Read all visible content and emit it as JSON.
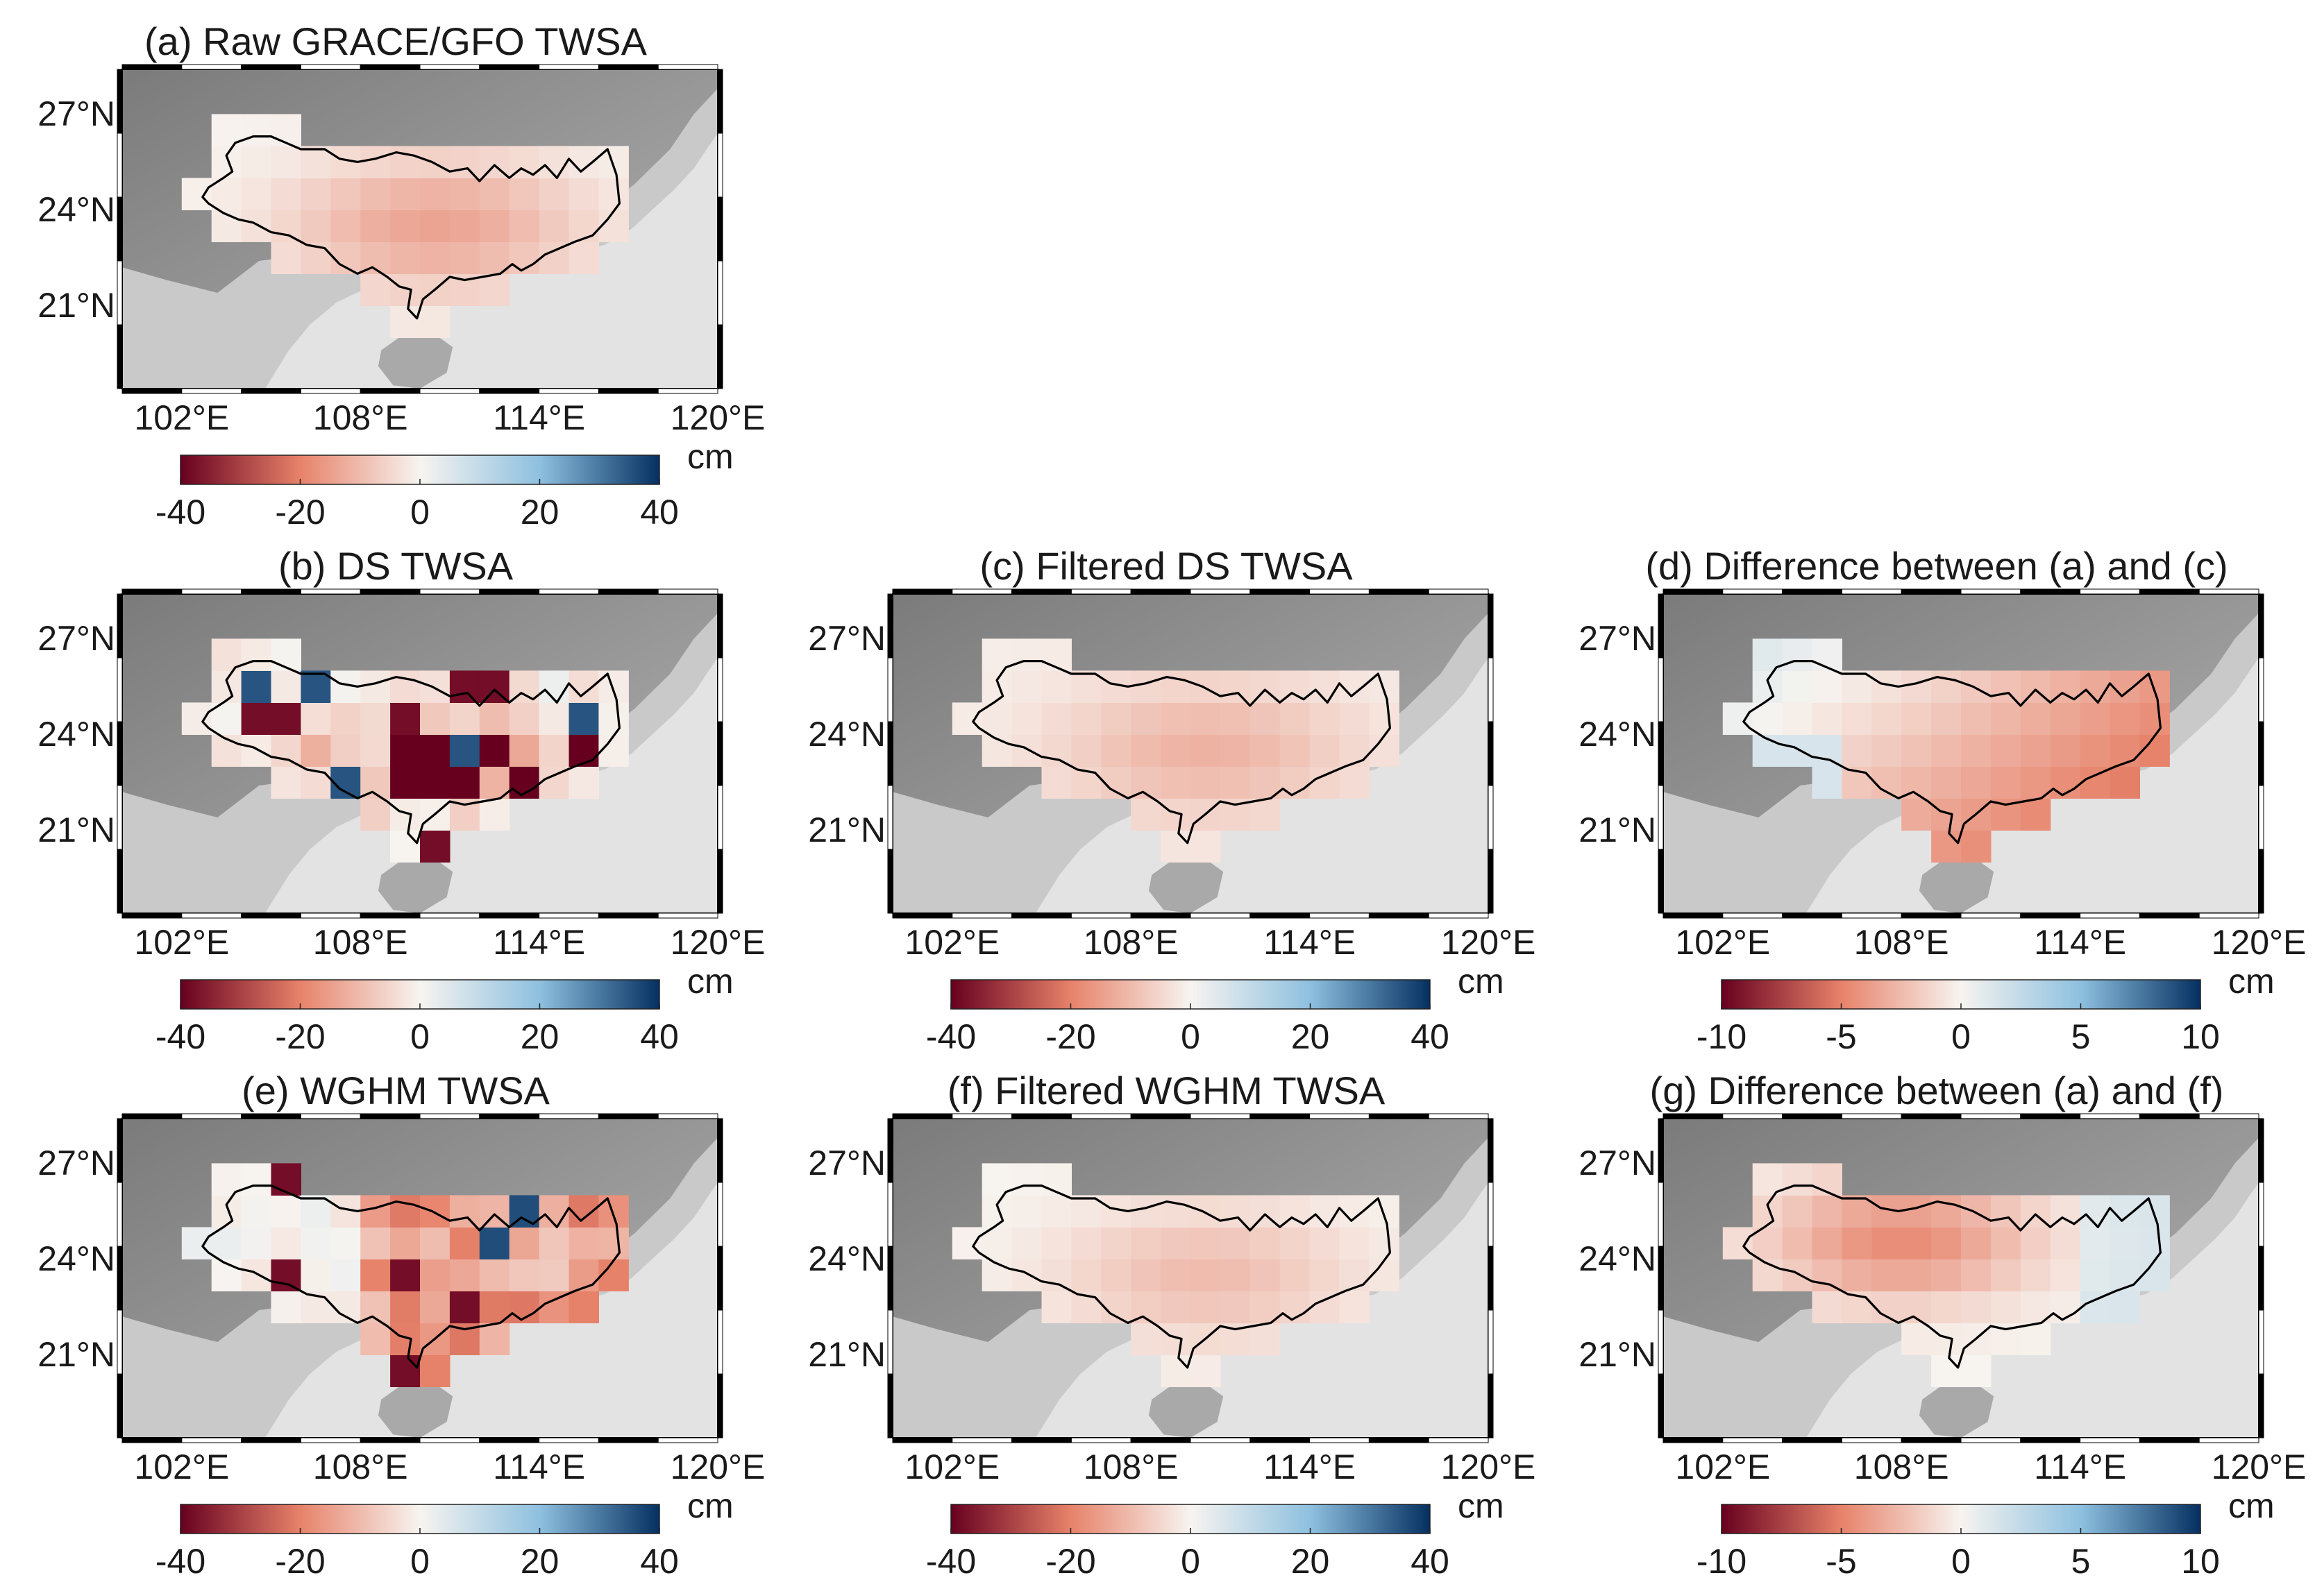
{
  "figure": {
    "common": {
      "lat_labels": [
        "27°N",
        "24°N",
        "21°N"
      ],
      "lon_labels": [
        "102°E",
        "108°E",
        "114°E",
        "120°E"
      ],
      "colorbar_unit": "cm"
    },
    "colors": {
      "land_dark": "#8d8d8d",
      "land_light": "#c9c9c9",
      "sea": "#e3e3e3",
      "boundary": "#000000",
      "neg_strong": "#67001f",
      "neg_mid": "#e7826a",
      "neutral": "#f7f4f0",
      "pos_mid": "#8ec0df",
      "pos_strong": "#053061"
    },
    "panels": [
      {
        "id": "a",
        "title": "(a) Raw GRACE/GFO TWSA",
        "ticks": [
          "-40",
          "-20",
          "0",
          "20",
          "40"
        ],
        "range": [
          -40,
          40
        ]
      },
      {
        "id": "b",
        "title": "(b) DS TWSA",
        "ticks": [
          "-40",
          "-20",
          "0",
          "20",
          "40"
        ],
        "range": [
          -40,
          40
        ]
      },
      {
        "id": "c",
        "title": "(c) Filtered DS TWSA",
        "ticks": [
          "-40",
          "-20",
          "0",
          "20",
          "40"
        ],
        "range": [
          -40,
          40
        ]
      },
      {
        "id": "d",
        "title": "(d) Difference between (a) and (c)",
        "ticks": [
          "-10",
          "-5",
          "0",
          "5",
          "10"
        ],
        "range": [
          -10,
          10
        ]
      },
      {
        "id": "e",
        "title": "(e) WGHM TWSA",
        "ticks": [
          "-40",
          "-20",
          "0",
          "20",
          "40"
        ],
        "range": [
          -40,
          40
        ]
      },
      {
        "id": "f",
        "title": "(f) Filtered WGHM TWSA",
        "ticks": [
          "-40",
          "-20",
          "0",
          "20",
          "40"
        ],
        "range": [
          -40,
          40
        ]
      },
      {
        "id": "g",
        "title": "(g) Difference between (a) and (f)",
        "ticks": [
          "-10",
          "-5",
          "0",
          "5",
          "10"
        ],
        "range": [
          -10,
          10
        ]
      }
    ]
  }
}
